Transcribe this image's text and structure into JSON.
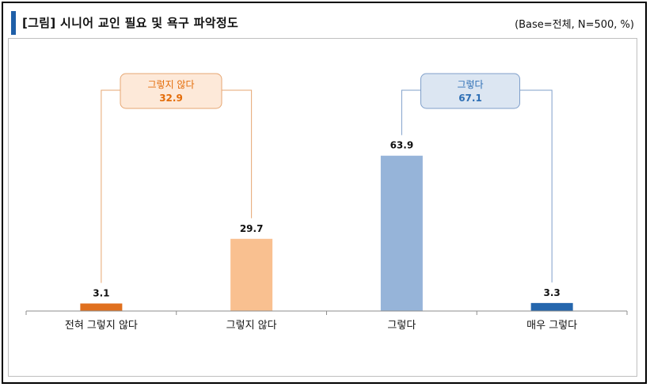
{
  "header": {
    "title": "[그림] 시니어 교인 필요 및 욕구 파악정도",
    "base_note": "(Base=전체, N=500, %)"
  },
  "chart_data": {
    "type": "bar",
    "title": "[그림] 시니어 교인 필요 및 욕구 파악정도",
    "categories": [
      "전혀 그렇지 않다",
      "그렇지 않다",
      "그렇다",
      "매우 그렇다"
    ],
    "values": [
      3.1,
      29.7,
      63.9,
      3.3
    ],
    "value_labels": [
      "3.1",
      "29.7",
      "63.9",
      "3.3"
    ],
    "ylim": [
      0,
      70
    ],
    "xlabel": "",
    "ylabel": "",
    "grid": false,
    "colors": [
      "#e0701e",
      "#f9c090",
      "#96b4d9",
      "#2566ad"
    ],
    "groups": [
      {
        "label": "그렇지 않다",
        "value": "32.9",
        "members": [
          0,
          1
        ],
        "color": "#e36c09",
        "fill": "#fde9d9",
        "border": "#e6a672"
      },
      {
        "label": "그렇다",
        "value": "67.1",
        "members": [
          2,
          3
        ],
        "color": "#2e6fb5",
        "fill": "#dce6f2",
        "border": "#7f9fca"
      }
    ]
  }
}
